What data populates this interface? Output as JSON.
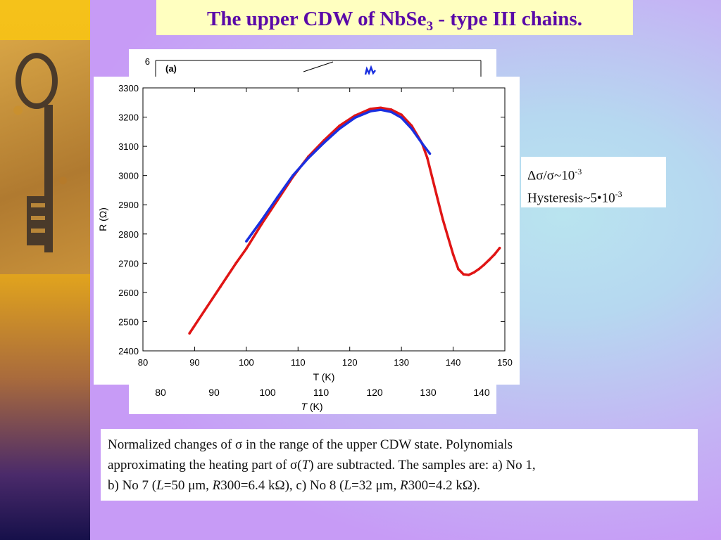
{
  "title": {
    "main": "The upper CDW of NbSe",
    "sub": "3",
    "rest": " - type III chains."
  },
  "back_chart": {
    "panel_label": "(a)",
    "y_tick_top": "6",
    "x_ticks": [
      "80",
      "90",
      "100",
      "110",
      "120",
      "130",
      "140"
    ],
    "xlabel_italic": "T",
    "xlabel_unit": " (K)"
  },
  "note": {
    "line1_text": "Δσ/σ~10",
    "line1_exp": "-3",
    "line2_text": "Hysteresis~5•10",
    "line2_exp": "-3"
  },
  "caption": {
    "p1": "Normalized changes of σ in the range of the upper CDW state. Polynomials",
    "p2a": "approximating the heating part of σ(",
    "p2b": "T",
    "p2c": ") are subtracted. The samples are: a) No 1,",
    "p3a": "b) No 7 (",
    "p3b": "L",
    "p3c": "=50 μm, ",
    "p3d": "R",
    "p3e": "300=6.4 kΩ), c) No 8 (",
    "p3f": "L",
    "p3g": "=32 μm, ",
    "p3h": "R",
    "p3i": "300=4.2 kΩ)."
  },
  "colors": {
    "red_series": "#e01515",
    "blue_series": "#1a2fe0",
    "title": "#5a0aa8"
  },
  "chart_data": {
    "type": "line",
    "xlabel": "T (K)",
    "ylabel": "R (Ω)",
    "xlim": [
      80,
      150
    ],
    "ylim": [
      2400,
      3300
    ],
    "x_ticks": [
      80,
      90,
      100,
      110,
      120,
      130,
      140,
      150
    ],
    "y_ticks": [
      2400,
      2500,
      2600,
      2700,
      2800,
      2900,
      3000,
      3100,
      3200,
      3300
    ],
    "grid": false,
    "series": [
      {
        "color": "#e01515",
        "x": [
          89,
          92,
          95,
          98,
          100,
          103,
          106,
          109,
          112,
          115,
          118,
          121,
          124,
          126,
          128,
          130,
          132,
          134,
          135,
          136,
          137,
          138,
          139,
          140,
          141,
          142,
          143,
          144,
          145,
          146,
          147,
          148,
          149
        ],
        "y": [
          2460,
          2540,
          2620,
          2700,
          2750,
          2835,
          2915,
          2995,
          3065,
          3120,
          3170,
          3205,
          3228,
          3232,
          3226,
          3208,
          3170,
          3110,
          3060,
          2990,
          2920,
          2850,
          2790,
          2730,
          2680,
          2662,
          2660,
          2668,
          2680,
          2695,
          2712,
          2730,
          2752
        ]
      },
      {
        "color": "#1a2fe0",
        "x": [
          100,
          103,
          106,
          109,
          112,
          115,
          118,
          121,
          124,
          126,
          128,
          130,
          132,
          134,
          135.5
        ],
        "y": [
          2775,
          2848,
          2925,
          3000,
          3060,
          3112,
          3160,
          3198,
          3220,
          3225,
          3218,
          3198,
          3160,
          3110,
          3075
        ]
      }
    ]
  }
}
